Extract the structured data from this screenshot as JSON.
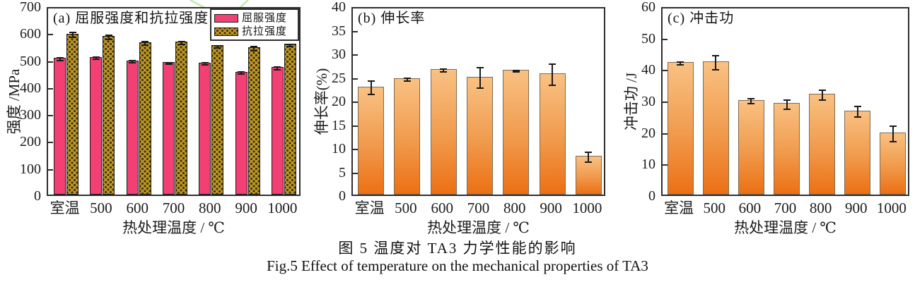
{
  "figure": {
    "caption_zh": "图 5  温度对 TA3 力学性能的影响",
    "caption_en": "Fig.5  Effect of temperature on the mechanical properties of TA3"
  },
  "colors": {
    "yield_pink": "#f23f74",
    "tensile_gold": "#bd9726",
    "tensile_dot": "#3f3008",
    "orange_gradient_top": "#f9c183",
    "orange_gradient_bottom": "#ec7014",
    "frame": "#2e2e2e",
    "error_bar": "#1a1a1a",
    "watermark_green": "#b9e6a5"
  },
  "chart_data": [
    {
      "id": "a",
      "type": "bar",
      "panel_label": "(a) 屈服强度和抗拉强度",
      "ylabel": "强度 /MPa",
      "xlabel": "热处理温度 / ℃",
      "categories": [
        "室温",
        "500",
        "600",
        "700",
        "800",
        "900",
        "1000"
      ],
      "ylim": [
        0,
        700
      ],
      "ytick_step": 100,
      "grid": false,
      "legend_position": "top-right",
      "legend": [
        {
          "name": "屈服强度",
          "style": "solid-pink"
        },
        {
          "name": "抗拉强度",
          "style": "checker-gold"
        }
      ],
      "series": [
        {
          "name": "屈服强度",
          "style": "solid-pink",
          "values": [
            512,
            515,
            502,
            497,
            495,
            461,
            478
          ],
          "errors": [
            4,
            4,
            4,
            3,
            3,
            5,
            4
          ]
        },
        {
          "name": "抗拉强度",
          "style": "checker-gold",
          "values": [
            602,
            592,
            570,
            572,
            558,
            551,
            563
          ],
          "errors": [
            10,
            8,
            6,
            5,
            4,
            9,
            3
          ]
        }
      ]
    },
    {
      "id": "b",
      "type": "bar",
      "panel_label": "(b) 伸长率",
      "ylabel": "伸长率(%)",
      "xlabel": "热处理温度 / ℃",
      "categories": [
        "室温",
        "500",
        "600",
        "700",
        "800",
        "900",
        "1000"
      ],
      "ylim": [
        0,
        40
      ],
      "ytick_step": 5,
      "grid": false,
      "series": [
        {
          "name": "伸长率",
          "style": "gradient-orange",
          "values": [
            23.2,
            24.9,
            26.9,
            25.3,
            26.7,
            26.0,
            8.5
          ],
          "errors": [
            1.4,
            0.3,
            0.3,
            2.2,
            0.2,
            2.2,
            1.0
          ]
        }
      ]
    },
    {
      "id": "c",
      "type": "bar",
      "panel_label": "(c) 冲击功",
      "ylabel": "冲击功 /J",
      "xlabel": "热处理温度 / ℃",
      "categories": [
        "室温",
        "500",
        "600",
        "700",
        "800",
        "900",
        "1000"
      ],
      "ylim": [
        0,
        60
      ],
      "ytick_step": 10,
      "grid": false,
      "series": [
        {
          "name": "冲击功",
          "style": "gradient-orange",
          "values": [
            42.5,
            42.8,
            30.5,
            29.5,
            32.5,
            27.2,
            20.2
          ],
          "errors": [
            0.5,
            2.3,
            0.8,
            1.5,
            1.5,
            1.7,
            2.5
          ]
        }
      ]
    }
  ]
}
